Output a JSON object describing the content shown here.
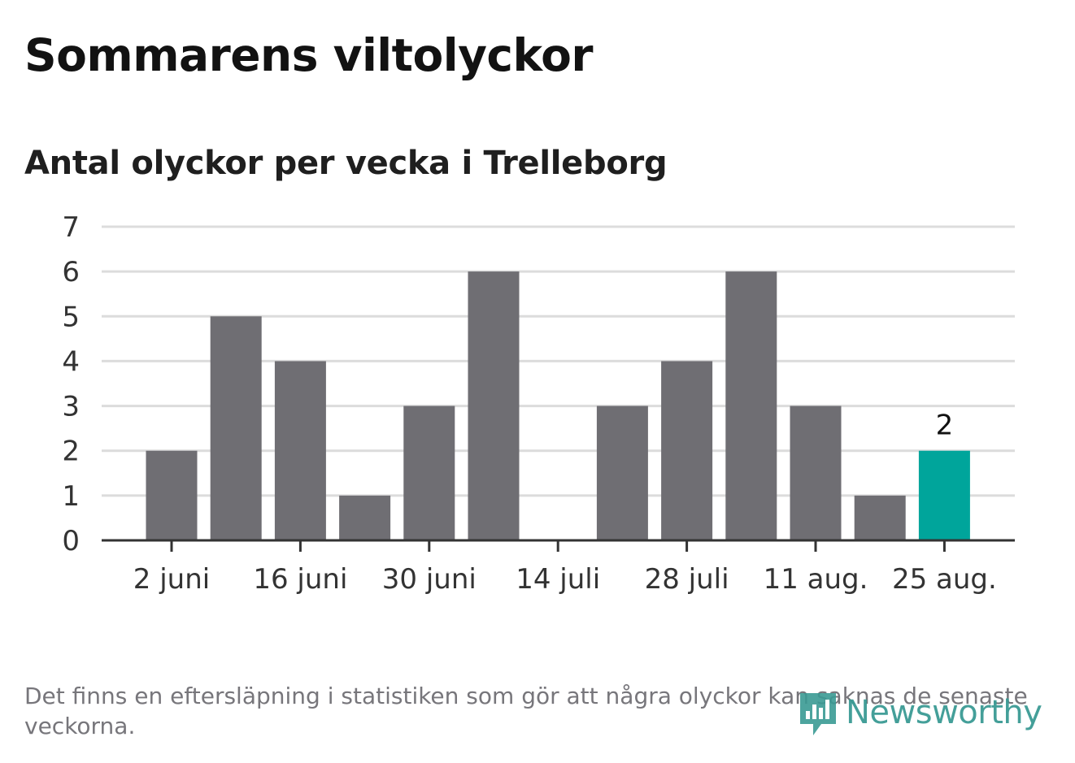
{
  "header": {
    "title": "Sommarens viltolyckor",
    "subtitle": "Antal olyckor per vecka i Trelleborg"
  },
  "footer": {
    "note": "Det finns en eftersläpning i statistiken som gör att några olyckor kan saknas de senaste veckorna.",
    "logo_text": "Newsworthy",
    "logo_icon": "bar-chart-speech-bubble-icon"
  },
  "colors": {
    "bar": "#6f6e73",
    "highlight": "#00a59b",
    "grid": "#dcdcdc",
    "axis": "#333333",
    "logo": "#3a9a94"
  },
  "chart_data": {
    "type": "bar",
    "title": "Antal olyckor per vecka i Trelleborg",
    "xlabel": "",
    "ylabel": "",
    "ylim": [
      0,
      7
    ],
    "yticks": [
      0,
      1,
      2,
      3,
      4,
      5,
      6,
      7
    ],
    "grid": true,
    "legend": "none",
    "x_tick_labels": [
      "2 juni",
      "16 juni",
      "30 juni",
      "14 juli",
      "28 juli",
      "11 aug.",
      "25 aug."
    ],
    "values": [
      2,
      5,
      4,
      1,
      3,
      6,
      0,
      3,
      4,
      6,
      3,
      1,
      2
    ],
    "highlight_index": 12,
    "highlight_label": "2"
  }
}
